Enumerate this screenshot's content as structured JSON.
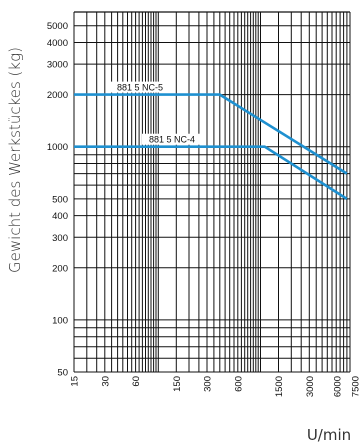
{
  "chart_data": {
    "type": "line",
    "title": "",
    "ylabel": "Gewicht des Werkstückes (kg)",
    "xlabel": "U/min",
    "x_scale": "log",
    "y_scale": "log",
    "xlim": [
      15,
      7500
    ],
    "ylim": [
      50,
      6000
    ],
    "x_ticks": [
      {
        "value": 15,
        "label": "15"
      },
      {
        "value": 30,
        "label": "30"
      },
      {
        "value": 60,
        "label": "60"
      },
      {
        "value": 150,
        "label": "150"
      },
      {
        "value": 300,
        "label": "300"
      },
      {
        "value": 600,
        "label": "600"
      },
      {
        "value": 1500,
        "label": "1500"
      },
      {
        "value": 3000,
        "label": "3000"
      },
      {
        "value": 6000,
        "label": "6000"
      },
      {
        "value": 7500,
        "label": "7500"
      }
    ],
    "y_ticks": [
      {
        "value": 50,
        "label": "50"
      },
      {
        "value": 100,
        "label": "100"
      },
      {
        "value": 200,
        "label": "200"
      },
      {
        "value": 300,
        "label": "300"
      },
      {
        "value": 400,
        "label": "400"
      },
      {
        "value": 500,
        "label": "500"
      },
      {
        "value": 1000,
        "label": "1000"
      },
      {
        "value": 2000,
        "label": "2000"
      },
      {
        "value": 3000,
        "label": "3000"
      },
      {
        "value": 4000,
        "label": "4000"
      },
      {
        "value": 5000,
        "label": "5000"
      }
    ],
    "grid": true,
    "series_color": "#1e90d0",
    "series": [
      {
        "name": "881 5 NC-5",
        "x": [
          15,
          400,
          7000
        ],
        "y": [
          2000,
          2000,
          700
        ]
      },
      {
        "name": "881 5 NC-4",
        "x": [
          15,
          1100,
          7000
        ],
        "y": [
          1000,
          1000,
          500
        ]
      }
    ]
  }
}
